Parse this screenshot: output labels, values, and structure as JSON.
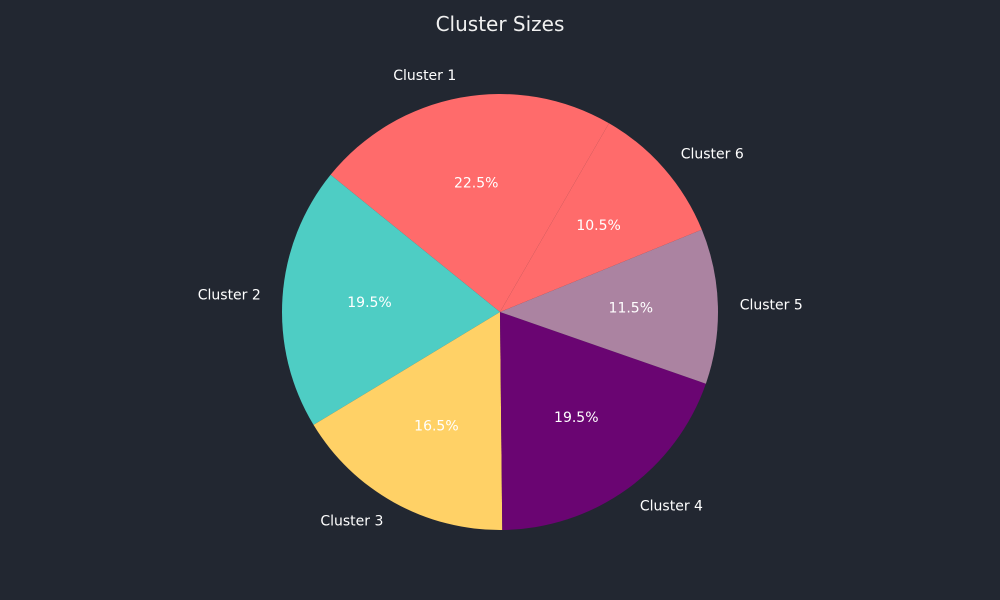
{
  "chart_data": {
    "type": "pie",
    "title": "Cluster Sizes",
    "categories": [
      "Cluster 1",
      "Cluster 2",
      "Cluster 3",
      "Cluster 4",
      "Cluster 5",
      "Cluster 6"
    ],
    "values": [
      22.5,
      19.5,
      16.5,
      19.5,
      11.5,
      10.5
    ],
    "percent_labels": [
      "22.5%",
      "19.5%",
      "16.5%",
      "19.5%",
      "11.5%",
      "10.5%"
    ],
    "colors": [
      "#ff6b6b",
      "#4ecdc4",
      "#ffd166",
      "#6a0572",
      "#ab83a1",
      "#ff6b6b"
    ],
    "start_angle_deg": 60,
    "direction": "counterclockwise",
    "background": "#222731"
  }
}
